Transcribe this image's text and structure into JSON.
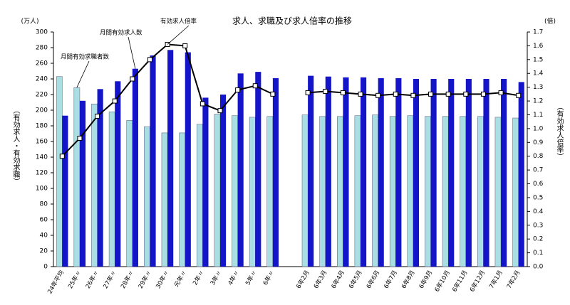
{
  "chart_data": {
    "type": "bar",
    "title": "求人、求職及び求人倍率の推移",
    "y_unit": "(万人)",
    "y2_unit": "(倍)",
    "ylabel": "（有効求人・有効求職）",
    "y2label": "（有効求人倍率）",
    "categories": [
      "24年平均",
      "25年〃",
      "26年〃",
      "27年〃",
      "28年〃",
      "29年〃",
      "30年〃",
      "元年〃",
      "2年〃",
      "3年〃",
      "4年〃",
      "5年〃",
      "6年〃",
      null,
      "6年2月",
      "6年3月",
      "6年4月",
      "6年5月",
      "6年6月",
      "6年7月",
      "6年8月",
      "6年9月",
      "6年10月",
      "6年11月",
      "6年12月",
      "7年1月",
      "7年2月"
    ],
    "series": [
      {
        "name": "月間有効求職者数",
        "color": "#a9dfe3",
        "values": [
          243,
          229,
          208,
          198,
          187,
          179,
          171,
          171,
          182,
          195,
          193,
          191,
          192,
          null,
          194,
          192,
          192,
          193,
          194,
          192,
          193,
          192,
          192,
          192,
          192,
          191,
          190
        ]
      },
      {
        "name": "月間有効求人数",
        "color": "#1414c8",
        "values": [
          193,
          212,
          227,
          237,
          253,
          270,
          277,
          274,
          216,
          220,
          247,
          249,
          241,
          null,
          244,
          243,
          242,
          242,
          241,
          241,
          240,
          240,
          240,
          240,
          240,
          240,
          236
        ]
      },
      {
        "name": "有効求人倍率",
        "type": "line",
        "axis": "y2",
        "color": "#000000",
        "values": [
          0.8,
          0.93,
          1.09,
          1.2,
          1.36,
          1.5,
          1.61,
          1.6,
          1.18,
          1.13,
          1.28,
          1.31,
          1.25,
          null,
          1.26,
          1.27,
          1.26,
          1.25,
          1.24,
          1.25,
          1.24,
          1.25,
          1.25,
          1.25,
          1.25,
          1.26,
          1.24
        ]
      }
    ],
    "ylim": [
      0,
      300
    ],
    "yticks": [
      0,
      20,
      40,
      60,
      80,
      100,
      120,
      140,
      160,
      180,
      200,
      220,
      240,
      260,
      280,
      300
    ],
    "y2lim": [
      0,
      1.7
    ],
    "y2ticks": [
      {
        "value": 0,
        "label": "0.0"
      },
      0.1,
      0.2,
      0.3,
      0.4,
      0.5,
      0.6,
      0.7,
      0.8,
      0.9,
      {
        "value": 1,
        "label": "1.0"
      },
      1.1,
      1.2,
      1.3,
      1.4,
      1.5,
      1.6,
      1.7
    ]
  }
}
